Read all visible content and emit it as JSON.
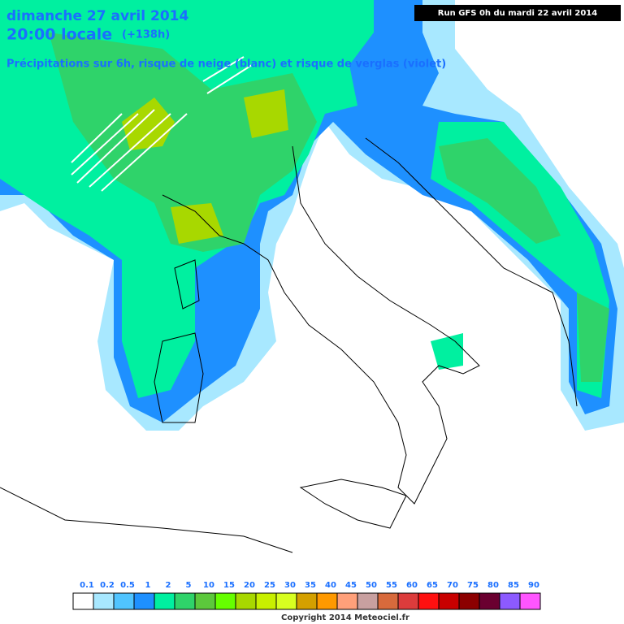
{
  "header": {
    "date": "dimanche 27 avril 2014",
    "time": "20:00 locale",
    "lead": "(+138h)",
    "subtitle": "Précipitations sur 6h, risque de neige (blanc) et risque de verglas (violet)",
    "run": "Run GFS 0h du mardi 22 avril 2014"
  },
  "legend": {
    "items": [
      {
        "value": 0.1,
        "color": "#ffffff"
      },
      {
        "value": 0.2,
        "color": "#a8e8ff"
      },
      {
        "value": 0.5,
        "color": "#50c4ff"
      },
      {
        "value": 1,
        "color": "#1e90ff"
      },
      {
        "value": 2,
        "color": "#00f0a0"
      },
      {
        "value": 5,
        "color": "#2fd36a"
      },
      {
        "value": 10,
        "color": "#5cc83c"
      },
      {
        "value": 15,
        "color": "#66ff00"
      },
      {
        "value": 20,
        "color": "#a8d800"
      },
      {
        "value": 25,
        "color": "#c8f000"
      },
      {
        "value": 30,
        "color": "#d8ff20"
      },
      {
        "value": 35,
        "color": "#d4a000"
      },
      {
        "value": 40,
        "color": "#ff9900"
      },
      {
        "value": 45,
        "color": "#ffa07a"
      },
      {
        "value": 50,
        "color": "#c8a0a0"
      },
      {
        "value": 55,
        "color": "#d86a3c"
      },
      {
        "value": 60,
        "color": "#dc3c3c"
      },
      {
        "value": 65,
        "color": "#ff1010"
      },
      {
        "value": 70,
        "color": "#c80000"
      },
      {
        "value": 75,
        "color": "#8c0000"
      },
      {
        "value": 80,
        "color": "#6a0030"
      },
      {
        "value": 85,
        "color": "#8c5aff"
      },
      {
        "value": 90,
        "color": "#ff55ff"
      }
    ]
  },
  "footer": {
    "copyright": "Copyright 2014 Meteociel.fr"
  }
}
